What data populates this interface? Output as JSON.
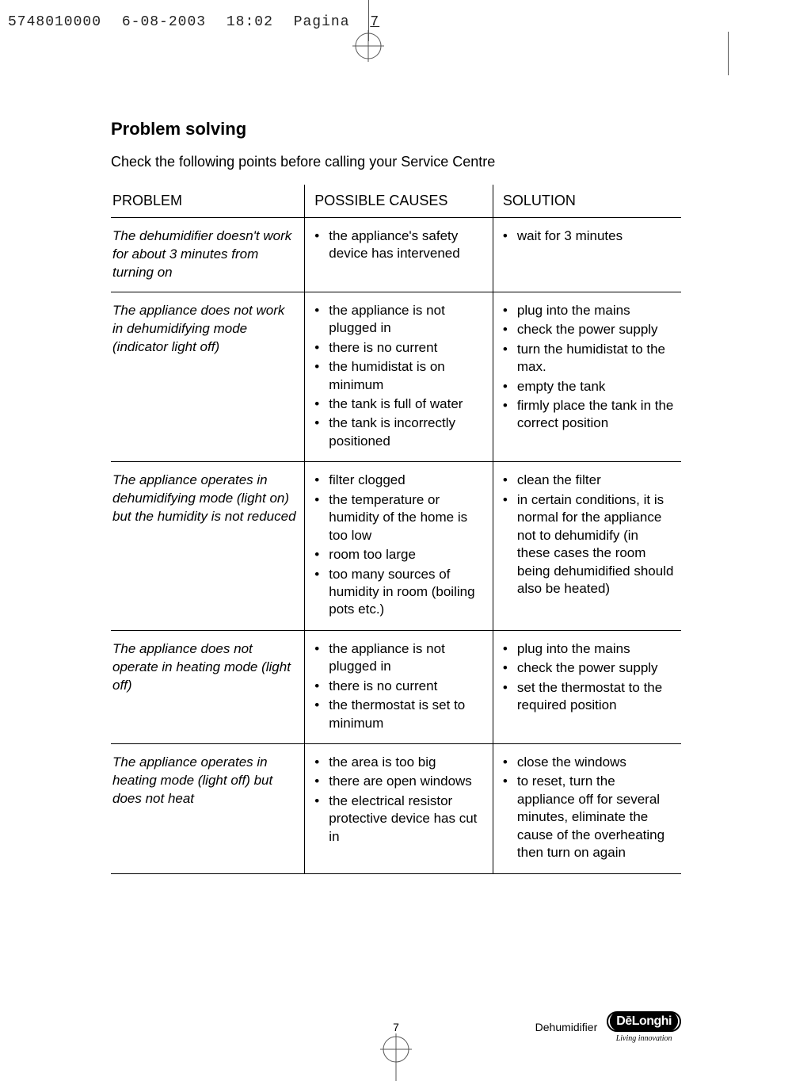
{
  "meta": {
    "doc_id": "5748010000",
    "date": "6-08-2003",
    "time": "18:02",
    "page_label": "Pagina",
    "page_no_header": "7"
  },
  "title": "Problem solving",
  "lede": "Check the following points before calling your Service Centre",
  "table": {
    "headers": {
      "problem": "PROBLEM",
      "causes": "POSSIBLE CAUSES",
      "solution": "SOLUTION"
    },
    "rows": [
      {
        "problem": "The dehumidifier doesn't work for about 3 minutes from turning on",
        "causes": [
          "the appliance's safety device  has intervened"
        ],
        "solution": [
          "wait for 3 minutes"
        ]
      },
      {
        "problem": "The appliance does not work in dehumidifying mode (indicator light off)",
        "causes": [
          "the appliance is not plugged in",
          "there is no current",
          "the humidistat is on minimum",
          "the tank is full of water",
          "the tank is incorrectly positioned"
        ],
        "solution": [
          "plug into the mains",
          "check the power supply",
          "turn the humidistat to the max.",
          "empty the tank",
          "firmly place the tank in the correct position"
        ]
      },
      {
        "problem": "The appliance operates in dehumidifying mode (light on) but the humidity is not reduced",
        "causes": [
          "filter clogged",
          "the temperature or humidity of the home is too low",
          "room too large",
          "too many sources of humidity in room (boiling pots etc.)"
        ],
        "solution": [
          "clean the filter",
          "in certain conditions, it is normal for the appliance not to dehumidify (in these cases the room being dehumidified should also be heated)"
        ]
      },
      {
        "problem": "The appliance does not operate in heating mode (light off)",
        "causes": [
          "the appliance is not plugged in",
          "there is no current",
          "the thermostat is set to minimum"
        ],
        "solution": [
          "plug into the mains",
          "check the power supply",
          "set the thermostat to the required position"
        ]
      },
      {
        "problem": "The appliance operates in heating mode (light off) but does not heat",
        "causes": [
          "the area is too big",
          "there are open windows",
          "the electrical resistor protective device has cut in"
        ],
        "solution": [
          "close the windows",
          "to reset, turn the appliance off for several minutes, eliminate the cause of the overheating then turn on again"
        ]
      }
    ]
  },
  "footer": {
    "page_number": "7",
    "product": "Dehumidifier",
    "brand": "DēLonghi",
    "tagline": "Living innovation"
  },
  "colors": {
    "text": "#000000",
    "background": "#ffffff",
    "rule": "#000000",
    "crop": "#555555"
  }
}
